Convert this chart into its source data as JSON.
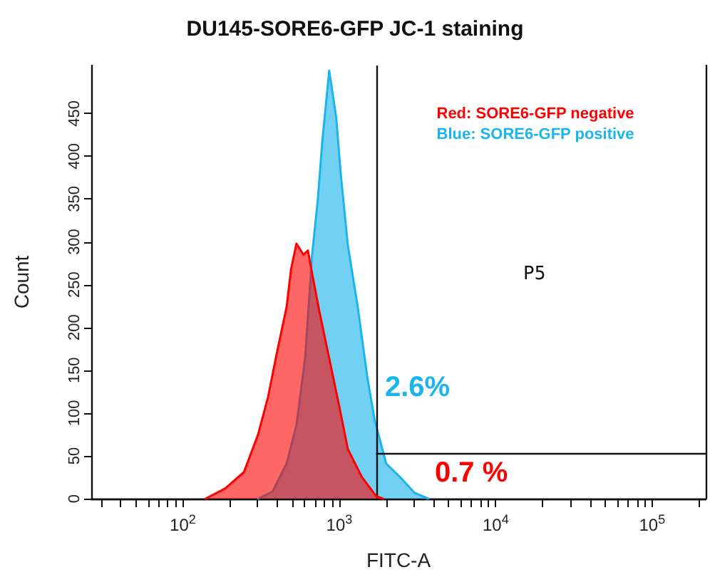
{
  "chart_data": {
    "type": "area",
    "title": "DU145-SORE6-GFP JC-1 staining",
    "xlabel": "FITC-A",
    "ylabel": "Count",
    "log": "x",
    "xlim": [
      26,
      220000
    ],
    "ylim": [
      0,
      506
    ],
    "xticks": [
      {
        "value": 30,
        "label": null
      },
      {
        "value": 40,
        "label": null
      },
      {
        "value": 50,
        "label": null
      },
      {
        "value": 60,
        "label": null
      },
      {
        "value": 70,
        "label": null
      },
      {
        "value": 80,
        "label": null
      },
      {
        "value": 90,
        "label": null
      },
      {
        "value": 100,
        "label": "10$^{2}$"
      },
      {
        "value": 200,
        "label": null
      },
      {
        "value": 300,
        "label": null
      },
      {
        "value": 400,
        "label": null
      },
      {
        "value": 500,
        "label": null
      },
      {
        "value": 600,
        "label": null
      },
      {
        "value": 700,
        "label": null
      },
      {
        "value": 800,
        "label": null
      },
      {
        "value": 900,
        "label": null
      },
      {
        "value": 1000,
        "label": "10$^{3}$"
      },
      {
        "value": 2000,
        "label": null
      },
      {
        "value": 3000,
        "label": null
      },
      {
        "value": 4000,
        "label": null
      },
      {
        "value": 5000,
        "label": null
      },
      {
        "value": 6000,
        "label": null
      },
      {
        "value": 7000,
        "label": null
      },
      {
        "value": 8000,
        "label": null
      },
      {
        "value": 9000,
        "label": null
      },
      {
        "value": 10000,
        "label": "10$^{4}$"
      },
      {
        "value": 20000,
        "label": null
      },
      {
        "value": 30000,
        "label": null
      },
      {
        "value": 40000,
        "label": null
      },
      {
        "value": 50000,
        "label": null
      },
      {
        "value": 60000,
        "label": null
      },
      {
        "value": 70000,
        "label": null
      },
      {
        "value": 80000,
        "label": null
      },
      {
        "value": 90000,
        "label": null
      },
      {
        "value": 100000,
        "label": "10$^{5}$"
      },
      {
        "value": 200000,
        "label": null
      }
    ],
    "yticks": [
      0,
      50,
      100,
      150,
      200,
      250,
      300,
      350,
      400,
      450
    ],
    "series": [
      {
        "name": "Red: SORE6-GFP negative",
        "color": "#ff0000",
        "x": [
          140,
          187,
          246,
          303,
          351,
          398,
          461,
          492,
          533,
          590,
          631,
          671,
          746,
          863,
          1000,
          1135,
          1397,
          1722,
          1900
        ],
        "values": [
          0,
          12,
          31,
          75,
          119,
          169,
          224,
          268,
          298,
          285,
          290,
          263,
          219,
          164,
          108,
          58,
          25,
          3,
          0
        ]
      },
      {
        "name": "Blue: SORE6-GFP positive",
        "color": "#1cb4ec",
        "x": [
          303,
          374,
          461,
          533,
          605,
          671,
          731,
          779,
          863,
          957,
          1023,
          1135,
          1313,
          1514,
          1688,
          1995,
          2455,
          3020,
          3715
        ],
        "values": [
          0,
          8,
          41,
          86,
          164,
          285,
          351,
          417,
          500,
          445,
          379,
          296,
          224,
          141,
          91,
          41,
          25,
          7,
          0
        ]
      }
    ],
    "ref_lines": [
      {
        "axis": "x",
        "value": 1720
      },
      {
        "axis": "y",
        "value": 53
      }
    ],
    "annotations": [
      "0.7 %",
      "2.6%",
      "P5"
    ],
    "legend": "top right",
    "grid": false,
    "marker": "none"
  }
}
